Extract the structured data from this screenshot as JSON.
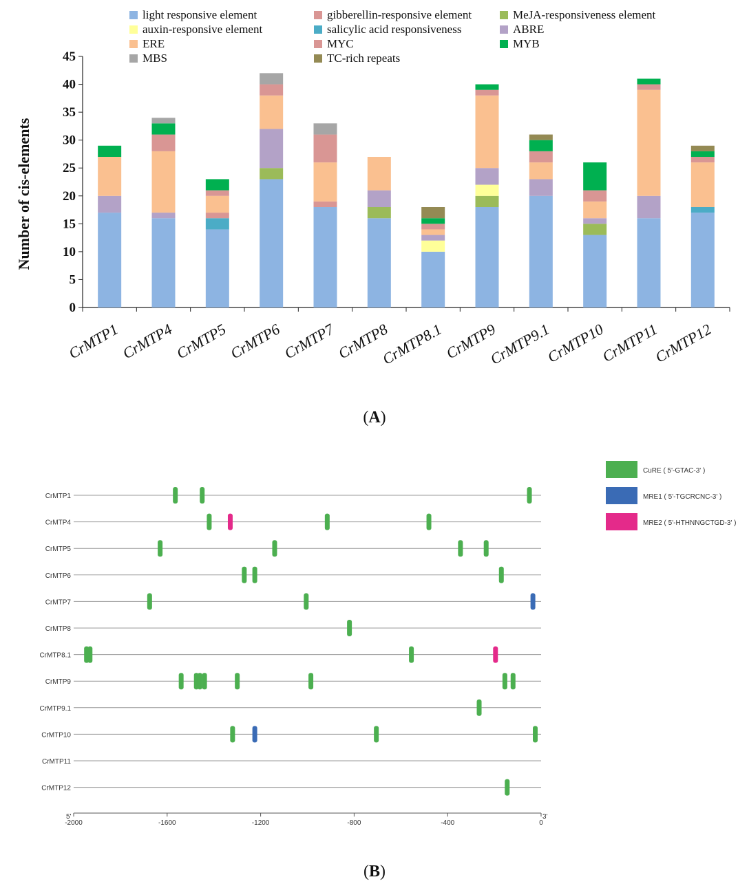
{
  "figure": {
    "panel_a_label": "A",
    "panel_b_label": "B"
  },
  "chart_data": [
    {
      "type": "bar",
      "stacked": true,
      "ylabel": "Number of cis-elements",
      "xlabel": "",
      "ylim": [
        0,
        45
      ],
      "yticks": [
        0,
        5,
        10,
        15,
        20,
        25,
        30,
        35,
        40,
        45
      ],
      "categories": [
        "CrMTP1",
        "CrMTP4",
        "CrMTP5",
        "CrMTP6",
        "CrMTP7",
        "CrMTP8",
        "CrMTP8.1",
        "CrMTP9",
        "CrMTP9.1",
        "CrMTP10",
        "CrMTP11",
        "CrMTP12"
      ],
      "legend_position": "top",
      "series": [
        {
          "name": "light responsive element",
          "color": "#8db4e2",
          "values": [
            17,
            16,
            14,
            23,
            18,
            16,
            10,
            18,
            20,
            13,
            16,
            17
          ]
        },
        {
          "name": "MeJA-responsiveness element",
          "color": "#9bbb59",
          "values": [
            0,
            0,
            0,
            2,
            0,
            2,
            0,
            2,
            0,
            2,
            0,
            0
          ]
        },
        {
          "name": "auxin-responsive element",
          "color": "#ffff99",
          "values": [
            0,
            0,
            0,
            0,
            0,
            0,
            2,
            2,
            0,
            0,
            0,
            0
          ]
        },
        {
          "name": "salicylic acid responsiveness",
          "color": "#4bacc6",
          "values": [
            0,
            0,
            2,
            0,
            0,
            0,
            0,
            0,
            0,
            0,
            0,
            1
          ]
        },
        {
          "name": "gibberellin-responsive element",
          "color": "#d99694",
          "values": [
            0,
            0,
            1,
            0,
            1,
            0,
            0,
            0,
            0,
            0,
            0,
            0
          ]
        },
        {
          "name": "ABRE",
          "color": "#b3a2c7",
          "values": [
            3,
            1,
            0,
            7,
            0,
            3,
            1,
            3,
            3,
            1,
            4,
            0
          ]
        },
        {
          "name": "ERE",
          "color": "#fac090",
          "values": [
            7,
            11,
            3,
            6,
            7,
            6,
            1,
            13,
            3,
            3,
            19,
            8
          ]
        },
        {
          "name": "MYC",
          "color": "#d99694",
          "values": [
            0,
            3,
            1,
            2,
            5,
            0,
            1,
            1,
            2,
            2,
            1,
            1
          ]
        },
        {
          "name": "MYB",
          "color": "#00b050",
          "values": [
            2,
            2,
            2,
            0,
            0,
            0,
            1,
            1,
            2,
            5,
            1,
            1
          ]
        },
        {
          "name": "MBS",
          "color": "#a6a6a6",
          "values": [
            0,
            1,
            0,
            2,
            2,
            0,
            0,
            0,
            0,
            0,
            0,
            0
          ]
        },
        {
          "name": "TC-rich repeats",
          "color": "#948a54",
          "values": [
            0,
            0,
            0,
            0,
            0,
            0,
            2,
            0,
            1,
            0,
            0,
            1
          ]
        }
      ]
    },
    {
      "type": "scatter",
      "title": "",
      "xlabel": "",
      "x_start_label": "5'",
      "x_end_label": "3'",
      "xlim": [
        -2000,
        0
      ],
      "xticks": [
        -2000,
        -1600,
        -1200,
        -800,
        -400,
        0
      ],
      "genes": [
        "CrMTP1",
        "CrMTP4",
        "CrMTP5",
        "CrMTP6",
        "CrMTP7",
        "CrMTP8",
        "CrMTP8.1",
        "CrMTP9",
        "CrMTP9.1",
        "CrMTP10",
        "CrMTP11",
        "CrMTP12"
      ],
      "legend": [
        {
          "name": "CuRE ( 5'-GTAC-3' )",
          "color": "#4caf50"
        },
        {
          "name": "MRE1 ( 5'-TGCRCNC-3' )",
          "color": "#3a6bb5"
        },
        {
          "name": "MRE2 ( 5'-HTHNNGCTGD-3' )",
          "color": "#e42a8a"
        }
      ],
      "series": [
        {
          "name": "CuRE",
          "color": "#4caf50",
          "points": [
            {
              "gene": "CrMTP1",
              "pos": -1565
            },
            {
              "gene": "CrMTP1",
              "pos": -1450
            },
            {
              "gene": "CrMTP1",
              "pos": -50
            },
            {
              "gene": "CrMTP4",
              "pos": -1420
            },
            {
              "gene": "CrMTP4",
              "pos": -915
            },
            {
              "gene": "CrMTP4",
              "pos": -480
            },
            {
              "gene": "CrMTP5",
              "pos": -1630
            },
            {
              "gene": "CrMTP5",
              "pos": -1140
            },
            {
              "gene": "CrMTP5",
              "pos": -345
            },
            {
              "gene": "CrMTP5",
              "pos": -235
            },
            {
              "gene": "CrMTP6",
              "pos": -1270
            },
            {
              "gene": "CrMTP6",
              "pos": -1225
            },
            {
              "gene": "CrMTP6",
              "pos": -170
            },
            {
              "gene": "CrMTP7",
              "pos": -1675
            },
            {
              "gene": "CrMTP7",
              "pos": -1005
            },
            {
              "gene": "CrMTP8",
              "pos": -820
            },
            {
              "gene": "CrMTP8.1",
              "pos": -1945
            },
            {
              "gene": "CrMTP8.1",
              "pos": -1930
            },
            {
              "gene": "CrMTP8.1",
              "pos": -555
            },
            {
              "gene": "CrMTP9",
              "pos": -1540
            },
            {
              "gene": "CrMTP9",
              "pos": -1475
            },
            {
              "gene": "CrMTP9",
              "pos": -1460
            },
            {
              "gene": "CrMTP9",
              "pos": -1440
            },
            {
              "gene": "CrMTP9",
              "pos": -1300
            },
            {
              "gene": "CrMTP9",
              "pos": -985
            },
            {
              "gene": "CrMTP9",
              "pos": -155
            },
            {
              "gene": "CrMTP9",
              "pos": -120
            },
            {
              "gene": "CrMTP9.1",
              "pos": -265
            },
            {
              "gene": "CrMTP10",
              "pos": -1320
            },
            {
              "gene": "CrMTP10",
              "pos": -705
            },
            {
              "gene": "CrMTP10",
              "pos": -25
            },
            {
              "gene": "CrMTP12",
              "pos": -145
            }
          ]
        },
        {
          "name": "MRE1",
          "color": "#3a6bb5",
          "points": [
            {
              "gene": "CrMTP7",
              "pos": -35
            },
            {
              "gene": "CrMTP10",
              "pos": -1225
            }
          ]
        },
        {
          "name": "MRE2",
          "color": "#e42a8a",
          "points": [
            {
              "gene": "CrMTP4",
              "pos": -1330
            },
            {
              "gene": "CrMTP8.1",
              "pos": -195
            }
          ]
        }
      ]
    }
  ]
}
